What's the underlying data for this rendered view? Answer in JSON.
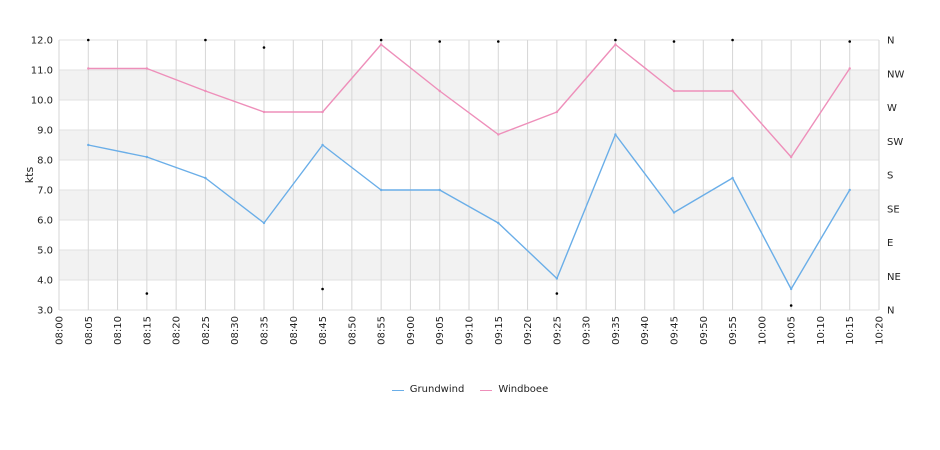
{
  "chart_data": {
    "type": "line",
    "ylabel": "kts",
    "ylim": [
      3.0,
      12.0
    ],
    "y_ticks": [
      "3.0",
      "4.0",
      "5.0",
      "6.0",
      "7.0",
      "8.0",
      "9.0",
      "10.0",
      "11.0",
      "12.0"
    ],
    "y2_ticks": [
      "N",
      "NE",
      "E",
      "SE",
      "S",
      "SW",
      "W",
      "NW",
      "N"
    ],
    "x_ticks": [
      "08:00",
      "08:05",
      "08:10",
      "08:15",
      "08:20",
      "08:25",
      "08:30",
      "08:35",
      "08:40",
      "08:45",
      "08:50",
      "08:55",
      "09:00",
      "09:05",
      "09:10",
      "09:15",
      "09:20",
      "09:25",
      "09:30",
      "09:35",
      "09:40",
      "09:45",
      "09:50",
      "09:55",
      "10:00",
      "10:05",
      "10:10",
      "10:15",
      "10:20"
    ],
    "x": [
      "08:05",
      "08:15",
      "08:25",
      "08:35",
      "08:45",
      "08:55",
      "09:05",
      "09:15",
      "09:25",
      "09:35",
      "09:45",
      "09:55",
      "10:05",
      "10:15"
    ],
    "series": [
      {
        "name": "Grundwind",
        "color": "#6aaee8",
        "values": [
          8.5,
          8.1,
          7.4,
          5.9,
          8.5,
          7.0,
          7.0,
          5.9,
          4.05,
          8.85,
          6.25,
          7.4,
          3.7,
          7.0
        ]
      },
      {
        "name": "Windboee",
        "color": "#ee8fba",
        "values": [
          11.05,
          11.05,
          10.3,
          9.6,
          9.6,
          11.85,
          10.3,
          8.85,
          9.6,
          11.85,
          10.3,
          10.3,
          8.1,
          11.05
        ]
      }
    ],
    "direction_markers": [
      {
        "x": "08:05",
        "y": 12.0
      },
      {
        "x": "08:15",
        "y": 3.55
      },
      {
        "x": "08:25",
        "y": 12.0
      },
      {
        "x": "08:35",
        "y": 11.75
      },
      {
        "x": "08:45",
        "y": 3.7
      },
      {
        "x": "08:55",
        "y": 12.0
      },
      {
        "x": "09:05",
        "y": 11.95
      },
      {
        "x": "09:15",
        "y": 11.95
      },
      {
        "x": "09:25",
        "y": 3.55
      },
      {
        "x": "09:35",
        "y": 12.0
      },
      {
        "x": "09:45",
        "y": 11.95
      },
      {
        "x": "09:55",
        "y": 12.0
      },
      {
        "x": "10:05",
        "y": 3.15
      },
      {
        "x": "10:15",
        "y": 11.95
      }
    ],
    "grid": true,
    "legend_position": "bottom"
  }
}
